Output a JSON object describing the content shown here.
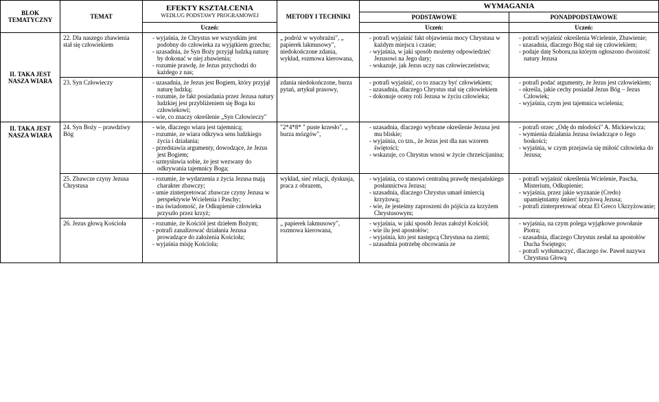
{
  "headers": {
    "blok": "BLOK TEMATYCZNY",
    "temat": "TEMAT",
    "efekty_main": "EFEKTY KSZTAŁCENIA",
    "efekty_sub": "WEDŁUG PODSTAWY PROGRAMOWEJ",
    "uczen": "Uczeń:",
    "metody": "METODY I TECHNIKI",
    "wymagania": "WYMAGANIA",
    "podstawowe": "PODSTAWOWE",
    "ponadpodstawowe": "PONADPODSTAWOWE"
  },
  "blok_label": "II. TAKA JEST NASZA WIARA",
  "rows": [
    {
      "blok": "",
      "temat": "22. Dla naszego zbawienia stał się człowiekiem",
      "efekty": [
        "wyjaśnia, że Chrystus we wszystkim jest podobny do człowieka za wyjątkiem grzechu;",
        "uzasadnia, że Syn Boży przyjął ludzką naturę by dokonać w niej zbawienia;",
        "rozumie prawdę, że Jezus przychodzi do każdego z nas;"
      ],
      "metody": "„ podróż w wyobraźni\", „ papierek lakmusowy\", niedokończone zdania, wykład, rozmowa kierowana,",
      "podstawowe": [
        "potrafi wyjaśnić fakt objawienia mocy Chrystusa w każdym miejscu i czasie;",
        "wyjaśnia, w jaki sposób możemy odpowiedzieć Jezusowi na Jego dary;",
        "wskazuje, jak Jezus uczy nas człowieczeństwa;"
      ],
      "ponad": [
        "potrafi wyjaśnić określenia Wcielenie, Zbawienie;",
        "uzasadnia, dlaczego Bóg stał się człowiekiem;",
        "podaje datę Soboru,na którym ogłoszono dwoistość natury Jezusa"
      ]
    },
    {
      "blok": "II. TAKA JEST NASZA WIARA",
      "temat": "23. Syn Człowieczy",
      "efekty": [
        "uzasadnia, że Jezus jest Bogiem, który przyjął naturę ludzką;",
        "rozumie, że fakt posiadania przez Jezusa natury ludzkiej jest przybliżeniem się Boga ku człowiekowi;",
        "wie, co znaczy określenie „Syn Człowieczy\""
      ],
      "metody": "zdania niedokończone, burza pytań, artykuł prasowy,",
      "podstawowe": [
        "potrafi wyjaśnić, co to znaczy być człowiekiem;",
        "uzasadnia, dlaczego Chrystus stał się człowiekiem",
        "dokonuje oceny roli Jezusa w życiu człowieka;"
      ],
      "ponad": [
        "potrafi podać argumenty, że Jezus jest człowiekiem;",
        "określa, jakie cechy posiadał Jezus Bóg – Jezus Człowiek;",
        "wyjaśnia, czym jest tajemnica wcielenia;"
      ]
    },
    {
      "blok": "II. TAKA JEST NASZA WIARA",
      "temat": "24. Syn Boży – prawdziwy Bóg",
      "efekty": [
        "wie, dlaczego wiara jest tajemnicą;",
        "rozumie, ze wiara odkrywa sens ludzkiego życia i działania;",
        "przedstawia argumenty, dowodzące, że Jezus jest Bogiem;",
        "uzmysławia sobie, że jest wezwany do odkrywania tajemnicy Boga;"
      ],
      "metody": "\"2*4*8* \" puste krzesło\", „ burza mózgów\",",
      "podstawowe": [
        "uzasadnia, dlaczego wybrane określenie Jezusa jest mu bliskie;",
        "wyjaśnia, co tzn., że Jezus jest dla nas wzorem świętości;",
        "wskazuje, co Chrystus wnosi w życie chrześcijanina;"
      ],
      "ponad": [
        "potrafi orzec „Odę do młodości\" A. Mickiewicza;",
        "wymienia działania Jezusa świadczące o Jego boskości;",
        "wyjaśnia, w czym przejawia się miłość człowieka do Jezusa;"
      ]
    },
    {
      "blok": "",
      "temat": "25. Zbawcze czyny Jezusa Chrystusa",
      "efekty": [
        "rozumie, że wydarzenia z życia Jezusa mają charakter zbawczy;",
        "umie zinterpretować zbawcze czyny Jezusa w perspektywie Wcielenia i Paschy;",
        "ma świadomość, że Odkupienie człowieka przyszło przez krzyż;"
      ],
      "metody": "wykład, sieć relacji, dyskusja, praca z obrazem,",
      "podstawowe": [
        "wyjaśnia, co stanowi centralną prawdę mesjańskiego posłannictwa Jezusa;",
        "uzasadnia, dlaczego Chrystus umarł śmiercią krzyżową;",
        "wie, że jesteśmy zaproszeni do pójścia za krzyżem Chrystusowym;"
      ],
      "ponad": [
        "potrafi wyjaśnić określenia Wcielenie, Pascha, Misterium, Odkupienie;",
        "wyjaśnia, przez jakie wyznanie (Credo) upamiętniamy śmierć krzyżową Jezusa;",
        "potrafi zinterpretować obraz El Greco Ukrzyżowanie;"
      ]
    },
    {
      "blok": "",
      "temat": "26. Jezus głową Kościoła",
      "efekty": [
        "rozumie, że Kościół jest dziełem Bożym;",
        "potrafi zanalizować działania Jezusa prowadzące do założenia Kościoła;",
        "wyjaśnia misję Kościoła;"
      ],
      "metody": "„ papierek lakmusowy\", rozmowa kierowana,",
      "podstawowe": [
        "wyjaśnia, w jaki sposób Jezus założył Kościół;",
        "wie ilu jest apostołów;",
        "wyjaśnia, kto jest następcą Chrystusa na ziemi;",
        "uzasadnia potrzebę obcowania ze"
      ],
      "ponad": [
        "wyjaśnia, na czym polega wyjątkowe powołanie Piotra;",
        "uzasadnia, dlaczego Chrystus zesłał na apostołów Ducha Świętego;",
        "potrafi wytłumaczyć, dlaczego św. Paweł nazywa Chrystusa Głową"
      ]
    }
  ]
}
